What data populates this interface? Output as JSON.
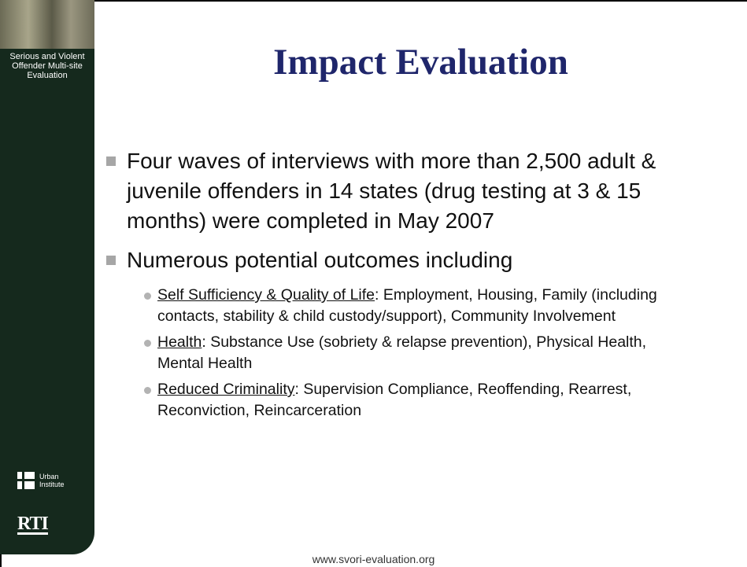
{
  "sidebar": {
    "project_name": "Serious and Violent Offender Multi-site Evaluation",
    "logo_urban": [
      "Urban",
      "Institute"
    ],
    "logo_rti": "RTI"
  },
  "slide": {
    "title": "Impact Evaluation",
    "bullets": [
      {
        "text": "Four waves of interviews with more than 2,500 adult & juvenile offenders in 14 states (drug testing at 3 & 15 months) were completed in May 2007",
        "subitems": []
      },
      {
        "text": "Numerous potential outcomes including",
        "subitems": [
          {
            "label": "Self Sufficiency & Quality of Life",
            "text": ": Employment, Housing, Family (including contacts, stability & child custody/support), Community Involvement"
          },
          {
            "label": "Health",
            "text": ": Substance Use (sobriety & relapse prevention), Physical Health, Mental Health"
          },
          {
            "label": "Reduced Criminality",
            "text": ": Supervision Compliance, Reoffending, Rearrest, Reconviction, Reincarceration"
          }
        ]
      }
    ]
  },
  "footer": {
    "url": "www.svori-evaluation.org"
  }
}
